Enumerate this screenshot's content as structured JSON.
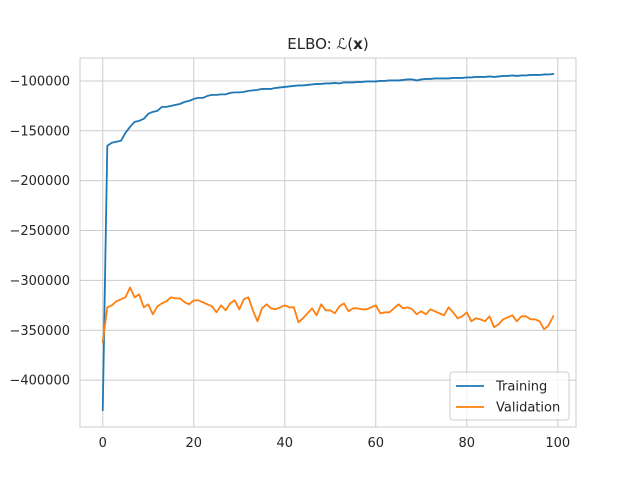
{
  "chart_data": {
    "type": "line",
    "title": "ELBO: ℒ(x)",
    "title_prefix": "ELBO: ℒ(",
    "title_var": "x",
    "title_suffix": ")",
    "xlabel": "",
    "ylabel": "",
    "xlim": [
      -5,
      104
    ],
    "ylim": [
      -447000,
      -77000
    ],
    "xticks": [
      0,
      20,
      40,
      60,
      80,
      100
    ],
    "yticks": [
      -100000,
      -150000,
      -200000,
      -250000,
      -300000,
      -350000,
      -400000
    ],
    "ytick_labels": [
      "−100000",
      "−150000",
      "−200000",
      "−250000",
      "−300000",
      "−350000",
      "−400000"
    ],
    "xtick_labels": [
      "0",
      "20",
      "40",
      "60",
      "80",
      "100"
    ],
    "grid": true,
    "legend_position": "lower-right",
    "series": [
      {
        "name": "Training",
        "color": "#1f77b4",
        "x": [
          0,
          1,
          2,
          3,
          4,
          5,
          6,
          7,
          8,
          9,
          10,
          11,
          12,
          13,
          14,
          15,
          16,
          17,
          18,
          19,
          20,
          21,
          22,
          23,
          24,
          25,
          26,
          27,
          28,
          29,
          30,
          31,
          32,
          33,
          34,
          35,
          36,
          37,
          38,
          39,
          40,
          41,
          42,
          43,
          44,
          45,
          46,
          47,
          48,
          49,
          50,
          51,
          52,
          53,
          54,
          55,
          56,
          57,
          58,
          59,
          60,
          61,
          62,
          63,
          64,
          65,
          66,
          67,
          68,
          69,
          70,
          71,
          72,
          73,
          74,
          75,
          76,
          77,
          78,
          79,
          80,
          81,
          82,
          83,
          84,
          85,
          86,
          87,
          88,
          89,
          90,
          91,
          92,
          93,
          94,
          95,
          96,
          97,
          98,
          99
        ],
        "values": [
          -430000,
          -165000,
          -162000,
          -161000,
          -160000,
          -152000,
          -146000,
          -141000,
          -140000,
          -138000,
          -133000,
          -131000,
          -130000,
          -126000,
          -126000,
          -125000,
          -124000,
          -123000,
          -121000,
          -120000,
          -118000,
          -117000,
          -117000,
          -115000,
          -114000,
          -114000,
          -113500,
          -113500,
          -112000,
          -111500,
          -111500,
          -111000,
          -110000,
          -109500,
          -109000,
          -108000,
          -108000,
          -108000,
          -107000,
          -106500,
          -106000,
          -105500,
          -105000,
          -104500,
          -104500,
          -104000,
          -103500,
          -103000,
          -103000,
          -102500,
          -102500,
          -102000,
          -102500,
          -101500,
          -101500,
          -101500,
          -101000,
          -101000,
          -100500,
          -100500,
          -100500,
          -100000,
          -100000,
          -99500,
          -99500,
          -99500,
          -99000,
          -98500,
          -98500,
          -99500,
          -98500,
          -98000,
          -98000,
          -97500,
          -97500,
          -97500,
          -97500,
          -97000,
          -97000,
          -97000,
          -96500,
          -96500,
          -96000,
          -96000,
          -96000,
          -95500,
          -96000,
          -95500,
          -95000,
          -95000,
          -94500,
          -95000,
          -94500,
          -94500,
          -94000,
          -94000,
          -94000,
          -93500,
          -93500,
          -93000
        ]
      },
      {
        "name": "Validation",
        "color": "#ff7f0e",
        "x": [
          0,
          1,
          2,
          3,
          4,
          5,
          6,
          7,
          8,
          9,
          10,
          11,
          12,
          13,
          14,
          15,
          16,
          17,
          18,
          19,
          20,
          21,
          22,
          23,
          24,
          25,
          26,
          27,
          28,
          29,
          30,
          31,
          32,
          33,
          34,
          35,
          36,
          37,
          38,
          39,
          40,
          41,
          42,
          43,
          44,
          45,
          46,
          47,
          48,
          49,
          50,
          51,
          52,
          53,
          54,
          55,
          56,
          57,
          58,
          59,
          60,
          61,
          62,
          63,
          64,
          65,
          66,
          67,
          68,
          69,
          70,
          71,
          72,
          73,
          74,
          75,
          76,
          77,
          78,
          79,
          80,
          81,
          82,
          83,
          84,
          85,
          86,
          87,
          88,
          89,
          90,
          91,
          92,
          93,
          94,
          95,
          96,
          97,
          98,
          99
        ],
        "values": [
          -362000,
          -327000,
          -325000,
          -321000,
          -319000,
          -317000,
          -307000,
          -317000,
          -314000,
          -327000,
          -324000,
          -334000,
          -326000,
          -323000,
          -321000,
          -317000,
          -318000,
          -318000,
          -322000,
          -324000,
          -320000,
          -320000,
          -322000,
          -324000,
          -326000,
          -332000,
          -325000,
          -330000,
          -323000,
          -320000,
          -329000,
          -319000,
          -317000,
          -330000,
          -341000,
          -328000,
          -324000,
          -328000,
          -329000,
          -327000,
          -325000,
          -327000,
          -327000,
          -342000,
          -338000,
          -333000,
          -328000,
          -335000,
          -324000,
          -330000,
          -330000,
          -333000,
          -326000,
          -323000,
          -331000,
          -328000,
          -328000,
          -329000,
          -329000,
          -327000,
          -325000,
          -333000,
          -332000,
          -332000,
          -328000,
          -324000,
          -328000,
          -327000,
          -329000,
          -334000,
          -331000,
          -334000,
          -329000,
          -331000,
          -333000,
          -335000,
          -327000,
          -332000,
          -338000,
          -336000,
          -332000,
          -341000,
          -338000,
          -339000,
          -341000,
          -336000,
          -347000,
          -344000,
          -339000,
          -337000,
          -335000,
          -341000,
          -336000,
          -336000,
          -339000,
          -339000,
          -341000,
          -349000,
          -345000,
          -336000
        ]
      }
    ]
  }
}
